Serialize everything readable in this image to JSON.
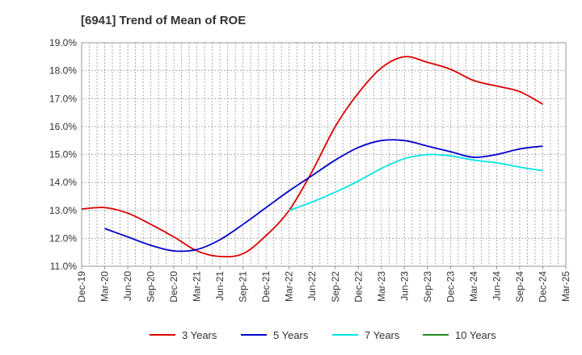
{
  "chart_data": {
    "type": "line",
    "title": "[6941]  Trend of Mean of ROE",
    "xlabel": "",
    "ylabel": "",
    "x": [
      "Dec-19",
      "Mar-20",
      "Jun-20",
      "Sep-20",
      "Dec-20",
      "Mar-21",
      "Jun-21",
      "Sep-21",
      "Dec-21",
      "Mar-22",
      "Jun-22",
      "Sep-22",
      "Dec-22",
      "Mar-23",
      "Jun-23",
      "Sep-23",
      "Dec-23",
      "Mar-24",
      "Jun-24",
      "Sep-24",
      "Dec-24",
      "Mar-25"
    ],
    "ylim": [
      11.0,
      19.0
    ],
    "yticks": [
      "19.0%",
      "18.0%",
      "17.0%",
      "16.0%",
      "15.0%",
      "14.0%",
      "13.0%",
      "12.0%",
      "11.0%"
    ],
    "grid": true,
    "legend_position": "bottom",
    "series": [
      {
        "name": "3 Years",
        "color": "#dd0000",
        "values": [
          13.05,
          13.1,
          12.9,
          12.5,
          12.05,
          11.55,
          11.35,
          11.45,
          12.1,
          13.0,
          14.4,
          16.0,
          17.2,
          18.1,
          18.5,
          18.3,
          18.05,
          17.65,
          17.45,
          17.25,
          16.8,
          null
        ]
      },
      {
        "name": "5 Years",
        "color": "#0000cc",
        "values": [
          null,
          12.35,
          12.05,
          11.75,
          11.55,
          11.6,
          11.95,
          12.5,
          13.1,
          13.7,
          14.25,
          14.8,
          15.25,
          15.5,
          15.5,
          15.3,
          15.1,
          14.9,
          15.0,
          15.2,
          15.3,
          null
        ]
      },
      {
        "name": "7 Years",
        "color": "#00e5e5",
        "values": [
          null,
          null,
          null,
          null,
          null,
          null,
          null,
          null,
          null,
          13.0,
          13.3,
          13.65,
          14.05,
          14.5,
          14.85,
          15.0,
          14.95,
          14.8,
          14.7,
          14.55,
          14.42,
          null
        ]
      },
      {
        "name": "10 Years",
        "color": "#228b22",
        "values": [
          null,
          null,
          null,
          null,
          null,
          null,
          null,
          null,
          null,
          null,
          null,
          null,
          null,
          null,
          null,
          null,
          null,
          null,
          null,
          null,
          null,
          null
        ]
      }
    ]
  }
}
